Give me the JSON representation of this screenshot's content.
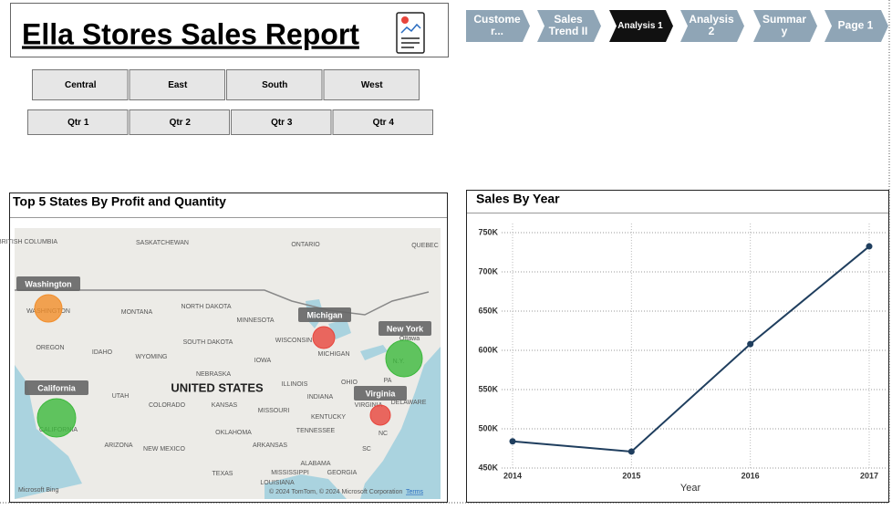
{
  "header": {
    "title": "Ella Stores Sales Report"
  },
  "nav": [
    {
      "lines": [
        "Custome",
        "r..."
      ],
      "active": false
    },
    {
      "lines": [
        "Sales",
        "Trend II"
      ],
      "active": false
    },
    {
      "lines": [
        "Analysis 1"
      ],
      "active": true
    },
    {
      "lines": [
        "Analysis",
        "2"
      ],
      "active": false
    },
    {
      "lines": [
        "Summar",
        "y"
      ],
      "active": false
    },
    {
      "lines": [
        "Page 1"
      ],
      "active": false
    }
  ],
  "slicers": {
    "regions": [
      "Central",
      "East",
      "South",
      "West"
    ],
    "quarters": [
      "Qtr 1",
      "Qtr 2",
      "Qtr 3",
      "Qtr 4"
    ]
  },
  "map": {
    "title": "Top 5 States By Profit and Quantity",
    "bubbles": [
      {
        "label": "Washington",
        "color": "#f28e2b"
      },
      {
        "label": "Michigan",
        "color": "#e8453c"
      },
      {
        "label": "New York",
        "color": "#3cb93c"
      },
      {
        "label": "California",
        "color": "#3cb93c"
      },
      {
        "label": "Virginia",
        "color": "#e8453c"
      }
    ],
    "places": [
      "BRITISH COLUMBIA",
      "SASKATCHEWAN",
      "ONTARIO",
      "QUEBEC",
      "WASHINGTON",
      "MONTANA",
      "NORTH DAKOTA",
      "MINNESOTA",
      "SOUTH DAKOTA",
      "WISCONSIN",
      "MICHIGAN",
      "Ottawa",
      "OREGON",
      "IDAHO",
      "WYOMING",
      "IOWA",
      "NEBRASKA",
      "UNITED STATES",
      "ILLINOIS",
      "INDIANA",
      "OHIO",
      "PA",
      "N.Y.",
      "UTAH",
      "COLORADO",
      "KANSAS",
      "MISSOURI",
      "KENTUCKY",
      "VIRGINIA",
      "DELAWARE",
      "CALIFORNIA",
      "ARIZONA",
      "NEW MEXICO",
      "OKLAHOMA",
      "ARKANSAS",
      "TENNESSEE",
      "NC",
      "SC",
      "TEXAS",
      "MISSISSIPPI",
      "ALABAMA",
      "GEORGIA",
      "LOUISIANA"
    ],
    "attribution": {
      "logo": "Microsoft Bing",
      "copyright": "© 2024 TomTom, © 2024 Microsoft Corporation",
      "terms": "Terms"
    }
  },
  "chart_data": {
    "type": "line",
    "title": "Sales By Year",
    "x": [
      2014,
      2015,
      2016,
      2017
    ],
    "xlim": [
      2014,
      2017
    ],
    "xticks": [
      2014,
      2015,
      2016,
      2017
    ],
    "xlabel": "Year",
    "series": [
      {
        "color": "#1f3e5e",
        "values": [
          484000,
          471000,
          608000,
          732500
        ]
      }
    ],
    "ylim": [
      450000,
      750000
    ],
    "yticks": [
      {
        "value": 450000,
        "label": "450K"
      },
      {
        "value": 500000,
        "label": "500K"
      },
      {
        "value": 550000,
        "label": "550K"
      },
      {
        "value": 600000,
        "label": "600K"
      },
      {
        "value": 650000,
        "label": "650K"
      },
      {
        "value": 700000,
        "label": "700K"
      },
      {
        "value": 750000,
        "label": "750K"
      }
    ],
    "grid": true
  }
}
